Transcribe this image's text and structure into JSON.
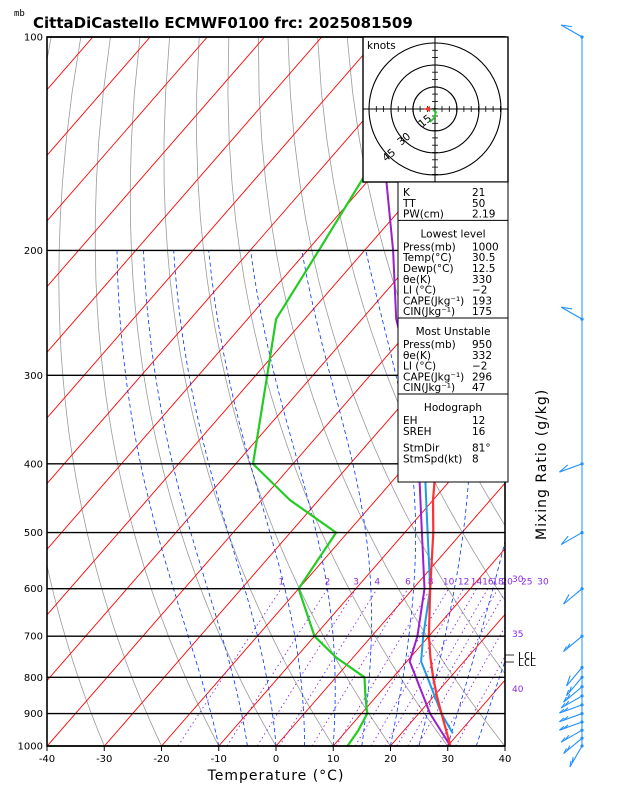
{
  "header": {
    "units_mb": "mb",
    "title": "CittaDiCastello ECMWF0100 frc: 2025081509"
  },
  "axes": {
    "xlabel": "Temperature (°C)",
    "right_label": "Mixing Ratio (g/kg)",
    "pressure_ticks": [
      1000,
      900,
      800,
      700,
      600,
      500,
      400,
      300,
      200,
      100
    ],
    "temperature_ticks": [
      -40,
      -30,
      -20,
      -10,
      0,
      10,
      20,
      30,
      40
    ],
    "mixing_ratio_labels": [
      "1",
      "2",
      "3",
      "4",
      "6",
      "8",
      "10",
      "12",
      "14",
      "16",
      "18",
      "20",
      "25",
      "30"
    ],
    "theta_e_labels": [
      "30",
      "35",
      "40"
    ]
  },
  "indices": {
    "top": [
      {
        "label": "K",
        "value": "21"
      },
      {
        "label": "TT",
        "value": "50"
      },
      {
        "label": "PW(cm)",
        "value": "2.19"
      }
    ],
    "lowest_level_title": "Lowest level",
    "lowest_level": [
      {
        "label": "Press(mb)",
        "value": "1000"
      },
      {
        "label": "Temp(°C)",
        "value": "30.5"
      },
      {
        "label": "Dewp(°C)",
        "value": "12.5"
      },
      {
        "label": "θe(K)",
        "value": "330"
      },
      {
        "label": "LI (°C)",
        "value": "−2"
      },
      {
        "label": "CAPE(Jkg⁻¹)",
        "value": "193"
      },
      {
        "label": "CIN(Jkg⁻¹)",
        "value": "175"
      }
    ],
    "most_unstable_title": "Most Unstable",
    "most_unstable": [
      {
        "label": "Press(mb)",
        "value": "950"
      },
      {
        "label": "θe(K)",
        "value": "332"
      },
      {
        "label": "LI (°C)",
        "value": "−2"
      },
      {
        "label": "CAPE(Jkg⁻¹)",
        "value": "296"
      },
      {
        "label": "CIN(Jkg⁻¹)",
        "value": "47"
      }
    ],
    "hodograph_title": "Hodograph",
    "hodograph": [
      {
        "label": "EH",
        "value": "12"
      },
      {
        "label": "SREH",
        "value": "16"
      },
      {
        "label": "StmDir",
        "value": "81°"
      },
      {
        "label": "StmSpd(kt)",
        "value": "8"
      }
    ]
  },
  "hodograph_inset": {
    "units": "knots",
    "ring_labels": [
      "15",
      "30",
      "45"
    ]
  },
  "lcl_labels": [
    "LCL",
    "LCL"
  ],
  "chart_data": {
    "type": "line",
    "title": "CittaDiCastello ECMWF0100 frc: 2025081509",
    "xlabel": "Temperature (°C)",
    "ylabel": "",
    "xlim": [
      -40,
      40
    ],
    "ylim": [
      1000,
      100
    ],
    "series": [
      {
        "pressure": [
          1000,
          900,
          850,
          800,
          750,
          700,
          600,
          500,
          450,
          400,
          300,
          250,
          200,
          150,
          100
        ],
        "temperature": [
          30.5,
          24,
          20.5,
          17,
          13.5,
          10,
          3,
          -5,
          -10,
          -15,
          -29,
          -39,
          -48,
          -55,
          -58
        ]
      },
      {
        "pressure": [
          1000,
          950,
          900,
          850,
          800,
          750,
          700,
          600,
          500,
          450,
          400,
          300,
          250,
          200,
          150,
          100
        ],
        "dewpoint": [
          12.5,
          12,
          11,
          8,
          5,
          -3,
          -10,
          -20,
          -22,
          -35,
          -47,
          -58,
          -65,
          -68,
          -72,
          -78
        ]
      },
      {
        "pressure": [
          1000,
          900,
          800,
          760,
          700,
          600,
          500,
          400,
          300,
          250,
          200,
          150,
          120
        ],
        "parcel_temperature": [
          30.5,
          22,
          14,
          10.5,
          8,
          2,
          -7,
          -18,
          -33,
          -44,
          -55,
          -70,
          -78
        ]
      },
      {
        "pressure": [
          960,
          900,
          800,
          760,
          700,
          600,
          500,
          400,
          300,
          250,
          200,
          150,
          100
        ],
        "parcel_virtual": [
          29,
          24,
          16,
          12.5,
          9,
          3,
          -6,
          -17,
          -32,
          -42,
          -53,
          -65,
          -75
        ]
      }
    ]
  },
  "wind_barbs": [
    {
      "pressure": 1000,
      "dir": 210,
      "speed_kt": 5
    },
    {
      "pressure": 975,
      "dir": 230,
      "speed_kt": 5
    },
    {
      "pressure": 950,
      "dir": 240,
      "speed_kt": 5
    },
    {
      "pressure": 925,
      "dir": 250,
      "speed_kt": 5
    },
    {
      "pressure": 900,
      "dir": 250,
      "speed_kt": 5
    },
    {
      "pressure": 875,
      "dir": 250,
      "speed_kt": 5
    },
    {
      "pressure": 850,
      "dir": 240,
      "speed_kt": 5
    },
    {
      "pressure": 825,
      "dir": 230,
      "speed_kt": 5
    },
    {
      "pressure": 800,
      "dir": 220,
      "speed_kt": 5
    },
    {
      "pressure": 775,
      "dir": 220,
      "speed_kt": 10
    },
    {
      "pressure": 700,
      "dir": 230,
      "speed_kt": 5
    },
    {
      "pressure": 600,
      "dir": 230,
      "speed_kt": 10
    },
    {
      "pressure": 500,
      "dir": 240,
      "speed_kt": 10
    },
    {
      "pressure": 400,
      "dir": 250,
      "speed_kt": 10
    },
    {
      "pressure": 250,
      "dir": 300,
      "speed_kt": 10
    },
    {
      "pressure": 100,
      "dir": 300,
      "speed_kt": 10
    }
  ],
  "colors": {
    "temperature": "#ff3030",
    "dewpoint": "#22cc22",
    "parcel": "#9b1fd0",
    "parcel_virtual": "#1e9be6",
    "isotherm": "#ff0000",
    "dry_adiabat": "#9a9a9a",
    "moist_adiabat": "#0033ff",
    "mixing_ratio": "#8a2be2",
    "barb": "#1e90ff"
  }
}
